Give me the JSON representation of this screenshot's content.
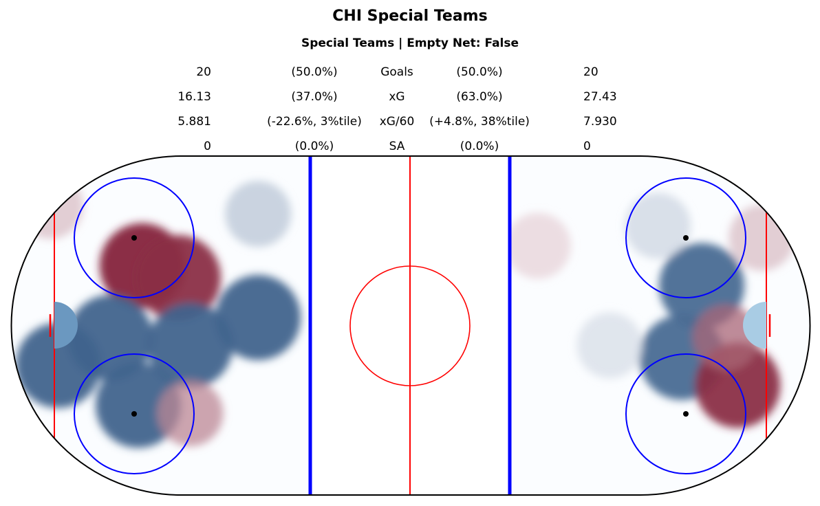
{
  "title": "CHI Special Teams",
  "subtitle": "Special Teams | Empty Net: False",
  "stats": [
    {
      "label": "Goals",
      "left_value": "20",
      "left_pct": "(50.0%)",
      "right_pct": "(50.0%)",
      "right_value": "20"
    },
    {
      "label": "xG",
      "left_value": "16.13",
      "left_pct": "(37.0%)",
      "right_pct": "(63.0%)",
      "right_value": "27.43"
    },
    {
      "label": "xG/60",
      "left_value": "5.881",
      "left_pct": "(-22.6%, 3%tile)",
      "right_pct": "(+4.8%, 38%tile)",
      "right_value": "7.930"
    },
    {
      "label": "SA",
      "left_value": "0",
      "left_pct": "(0.0%)",
      "right_pct": "(0.0%)",
      "right_value": "0"
    }
  ],
  "chart_data": {
    "type": "heatmap",
    "title": "CHI Special Teams",
    "subtitle": "Special Teams | Empty Net: False",
    "colormap": "RdBu_r (blue = below average, red = above average)",
    "x_units": "feet",
    "y_units": "feet",
    "xlim": [
      -100,
      100
    ],
    "ylim": [
      -42.5,
      42.5
    ],
    "left_zone": [
      {
        "x": -67,
        "y": 15,
        "value": 1.0
      },
      {
        "x": -58,
        "y": 12,
        "value": 0.95
      },
      {
        "x": -75,
        "y": -3,
        "value": -0.95
      },
      {
        "x": -55,
        "y": -5,
        "value": -0.95
      },
      {
        "x": -38,
        "y": 2,
        "value": -0.95
      },
      {
        "x": -68,
        "y": -20,
        "value": -0.95
      },
      {
        "x": -88,
        "y": -10,
        "value": -0.95
      },
      {
        "x": -55,
        "y": -22,
        "value": 0.55
      },
      {
        "x": -38,
        "y": 28,
        "value": -0.35
      },
      {
        "x": -90,
        "y": 30,
        "value": 0.3
      }
    ],
    "right_zone": [
      {
        "x": 73,
        "y": 10,
        "value": -0.9
      },
      {
        "x": 68,
        "y": -8,
        "value": -0.9
      },
      {
        "x": 82,
        "y": -15,
        "value": 0.95
      },
      {
        "x": 79,
        "y": -3,
        "value": 0.7
      },
      {
        "x": 88,
        "y": 22,
        "value": 0.3
      },
      {
        "x": 32,
        "y": 20,
        "value": 0.2
      },
      {
        "x": 62,
        "y": 25,
        "value": -0.25
      },
      {
        "x": 50,
        "y": -5,
        "value": -0.2
      }
    ],
    "colors": {
      "blue_line": "#0000ff",
      "red_line": "#ff0000",
      "faceoff_circle": "#0000ff",
      "boards": "#000000"
    }
  }
}
